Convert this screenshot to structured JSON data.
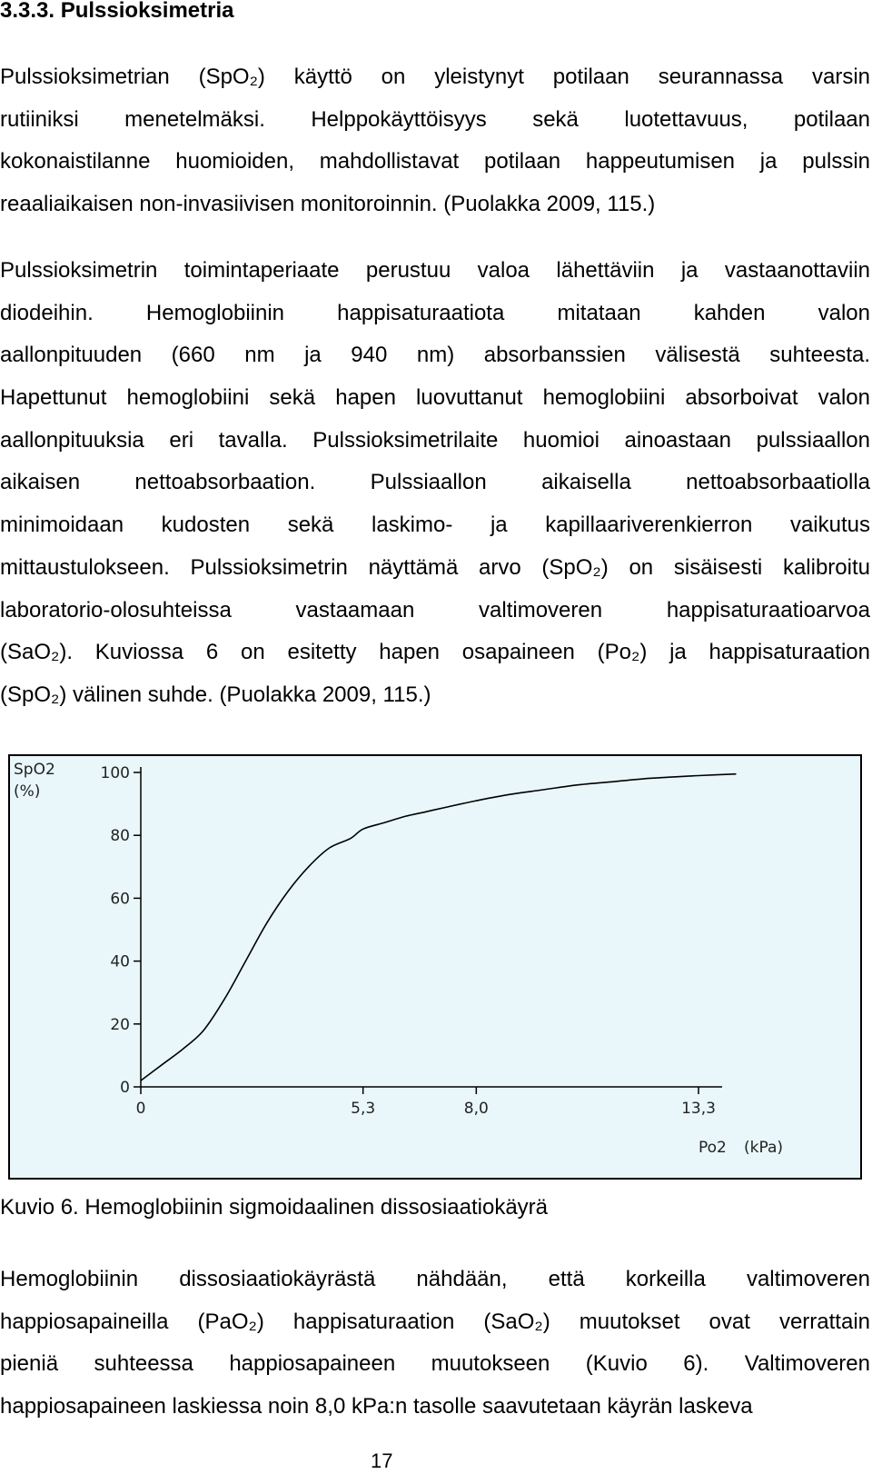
{
  "section": {
    "heading": "3.3.3. Pulssioksimetria"
  },
  "paragraphs": {
    "p1": [
      "Pulssioksimetrian (SpO₂) käyttö on yleistynyt potilaan seurannassa varsin",
      "rutiiniksi menetelmäksi. Helppokäyttöisyys sekä luotettavuus, potilaan",
      "kokonaistilanne huomioiden, mahdollistavat potilaan happeutumisen ja pulssin",
      "reaaliaikaisen non-invasiivisen monitoroinnin. (Puolakka 2009, 115.)"
    ],
    "p2": [
      "Pulssioksimetrin toimintaperiaate perustuu valoa lähettäviin ja vastaanottaviin",
      "diodeihin. Hemoglobiinin happisaturaatiota mitataan kahden valon",
      "aallonpituuden (660 nm ja 940 nm) absorbanssien välisestä suhteesta.",
      "Hapettunut hemoglobiini sekä hapen luovuttanut hemoglobiini absorboivat valon",
      "aallonpituuksia eri tavalla. Pulssioksimetrilaite huomioi ainoastaan pulssiaallon",
      "aikaisen nettoabsorbaation. Pulssiaallon aikaisella nettoabsorbaatiolla",
      "minimoidaan kudosten sekä laskimo- ja kapillaariverenkierron vaikutus",
      "mittaustulokseen. Pulssioksimetrin näyttämä arvo (SpO₂) on sisäisesti kalibroitu",
      "laboratorio-olosuhteissa vastaamaan valtimoveren happisaturaatioarvoa",
      "(SaO₂). Kuviossa 6 on esitetty hapen osapaineen (Po₂) ja happisaturaation",
      "(SpO₂) välinen suhde. (Puolakka 2009, 115.)"
    ],
    "p3": [
      "Hemoglobiinin dissosiaatiokäyrästä nähdään, että korkeilla valtimoveren",
      "happiosapaineilla (PaO₂) happisaturaation (SaO₂) muutokset ovat verrattain",
      "pieniä suhteessa happiosapaineen muutokseen (Kuvio 6). Valtimoveren",
      "happiosapaineen laskiessa noin 8,0 kPa:n tasolle saavutetaan käyrän laskeva"
    ]
  },
  "figure": {
    "caption": "Kuvio 6. Hemoglobiinin sigmoidaalinen dissosiaatiokäyrä"
  },
  "page_number": "17",
  "colors": {
    "chart_background": "#e9f7fa",
    "chart_border": "#000000",
    "curve": "#000000",
    "text": "#000000"
  },
  "chart_data": {
    "type": "line",
    "title": "",
    "ylabel": "SpO2",
    "ylabel_unit": "(%)",
    "xlabel": "Po2",
    "xlabel_unit": "(kPa)",
    "ylim": [
      0,
      100
    ],
    "xlim": [
      0,
      13.3
    ],
    "y_ticks": [
      "0",
      "20",
      "40",
      "60",
      "80",
      "100"
    ],
    "y_tick_values": [
      0,
      20,
      40,
      60,
      80,
      100
    ],
    "x_ticks": [
      "0",
      "5,3",
      "8,0",
      "13,3"
    ],
    "x_tick_values": [
      0,
      5.3,
      8.0,
      13.3
    ],
    "grid": false,
    "legend": "none",
    "series": [
      {
        "x": [
          0,
          0.5,
          1.0,
          1.5,
          2.0,
          2.5,
          3.0,
          3.5,
          4.0,
          4.5,
          5.0,
          5.3,
          5.8,
          6.3,
          6.8,
          7.3,
          8.0,
          8.8,
          9.6,
          10.4,
          11.2,
          12.0,
          12.6,
          13.3,
          14.2
        ],
        "y": [
          2,
          7,
          12,
          18,
          28,
          40,
          52,
          62,
          70,
          76,
          79,
          82,
          84,
          86,
          87.5,
          89,
          91,
          93,
          94.5,
          96,
          97,
          98,
          98.5,
          99,
          99.5
        ]
      }
    ]
  }
}
